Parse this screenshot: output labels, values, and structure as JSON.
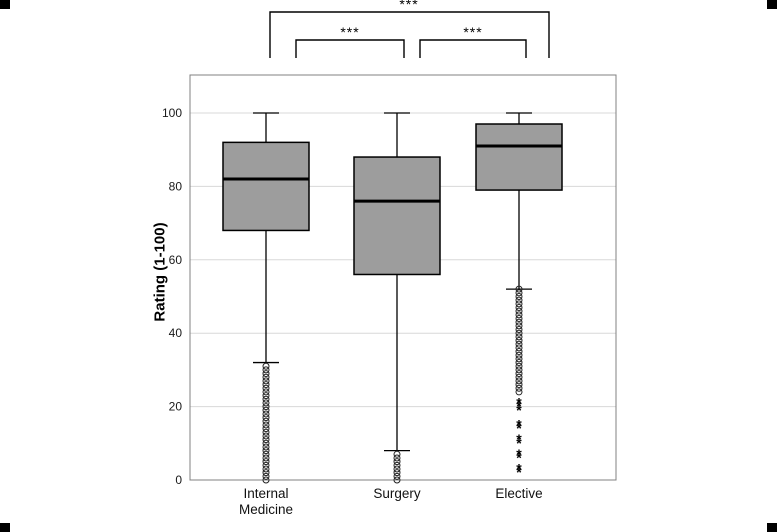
{
  "figure": {
    "background": "#ffffff"
  },
  "chart_data": {
    "type": "boxplot",
    "title": "",
    "ylabel": "Rating (1-100)",
    "xlabel": "",
    "ylim": [
      0,
      100
    ],
    "yticks": [
      0,
      20,
      40,
      60,
      80,
      100
    ],
    "grid": "horizontal",
    "categories": [
      "Internal Medicine",
      "Surgery",
      "Elective"
    ],
    "series": [
      {
        "name": "Internal Medicine",
        "whisker_low": 32,
        "q1": 68,
        "median": 82,
        "q3": 92,
        "whisker_high": 100,
        "outliers_circle": [
          31,
          30,
          29,
          28,
          27,
          26,
          25,
          24,
          23,
          22,
          21,
          20,
          19,
          18,
          17,
          16,
          15,
          14,
          13,
          12,
          11,
          10,
          9,
          8,
          7,
          6,
          5,
          4,
          3,
          2,
          1,
          0
        ],
        "outliers_star": []
      },
      {
        "name": "Surgery",
        "whisker_low": 8,
        "q1": 56,
        "median": 76,
        "q3": 88,
        "whisker_high": 100,
        "outliers_circle": [
          7,
          6,
          5,
          4,
          3,
          2,
          1,
          0
        ],
        "outliers_star": []
      },
      {
        "name": "Elective",
        "whisker_low": 52,
        "q1": 79,
        "median": 91,
        "q3": 97,
        "whisker_high": 100,
        "outliers_circle": [
          52,
          51,
          50,
          49,
          48,
          47,
          46,
          45,
          44,
          43,
          42,
          41,
          40,
          39,
          38,
          37,
          36,
          35,
          34,
          33,
          32,
          31,
          30,
          29,
          28,
          27,
          26,
          25,
          24
        ],
        "outliers_star": [
          21,
          20,
          19,
          15,
          14,
          11,
          10,
          7,
          6,
          3,
          2
        ]
      }
    ],
    "comparisons": [
      {
        "groups": [
          "Internal Medicine",
          "Elective"
        ],
        "label": "***"
      },
      {
        "groups": [
          "Internal Medicine",
          "Surgery"
        ],
        "label": "***"
      },
      {
        "groups": [
          "Surgery",
          "Elective"
        ],
        "label": "***"
      }
    ],
    "colors": {
      "box_fill": "#9d9d9d",
      "box_stroke": "#000000",
      "median": "#000000",
      "whisker": "#000000",
      "grid": "#d8d8d8",
      "frame": "#808080",
      "outlier": "#222222"
    }
  }
}
